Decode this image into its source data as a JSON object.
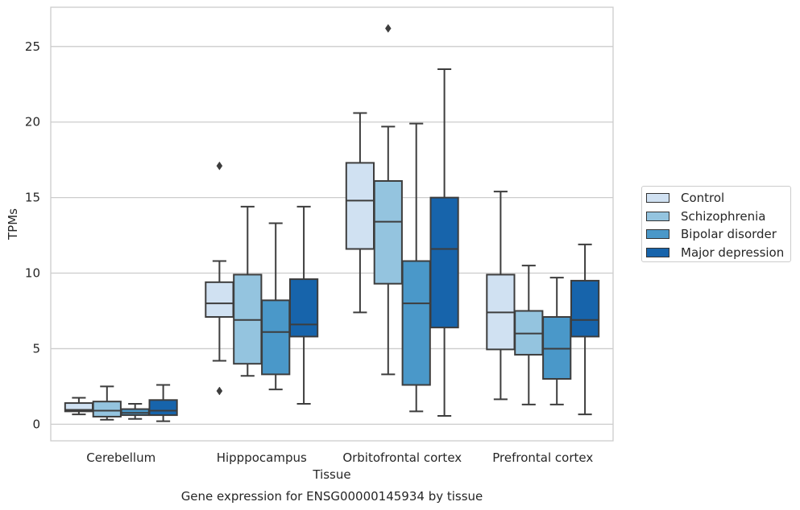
{
  "chart_data": {
    "type": "boxplot",
    "title": "Gene expression for ENSG00000145934 by tissue",
    "xlabel": "Tissue",
    "ylabel": "TPMs",
    "ylim": [
      -1.1,
      27.6
    ],
    "yticks": [
      0,
      5,
      10,
      15,
      20,
      25
    ],
    "grid": true,
    "legend_position": "right, outside plot",
    "categories": [
      "Cerebellum",
      "Hipppocampus",
      "Orbitofrontal cortex",
      "Prefrontal cortex"
    ],
    "series": [
      {
        "name": "Control",
        "color": "#d0e1f2",
        "boxes": [
          {
            "whisker_low": 0.65,
            "q1": 0.85,
            "median": 0.95,
            "q3": 1.4,
            "whisker_high": 1.75,
            "outliers": []
          },
          {
            "whisker_low": 4.2,
            "q1": 7.1,
            "median": 8.0,
            "q3": 9.4,
            "whisker_high": 10.8,
            "outliers": [
              17.1,
              2.2
            ]
          },
          {
            "whisker_low": 7.4,
            "q1": 11.6,
            "median": 14.8,
            "q3": 17.3,
            "whisker_high": 20.6,
            "outliers": []
          },
          {
            "whisker_low": 1.65,
            "q1": 4.95,
            "median": 7.4,
            "q3": 9.9,
            "whisker_high": 15.4,
            "outliers": []
          }
        ]
      },
      {
        "name": "Schizophrenia",
        "color": "#94c4df",
        "boxes": [
          {
            "whisker_low": 0.3,
            "q1": 0.5,
            "median": 0.9,
            "q3": 1.5,
            "whisker_high": 2.5,
            "outliers": []
          },
          {
            "whisker_low": 3.2,
            "q1": 4.0,
            "median": 6.9,
            "q3": 9.9,
            "whisker_high": 14.4,
            "outliers": []
          },
          {
            "whisker_low": 3.3,
            "q1": 9.3,
            "median": 13.4,
            "q3": 16.1,
            "whisker_high": 19.7,
            "outliers": [
              26.2
            ]
          },
          {
            "whisker_low": 1.3,
            "q1": 4.6,
            "median": 6.0,
            "q3": 7.5,
            "whisker_high": 10.5,
            "outliers": []
          }
        ]
      },
      {
        "name": "Bipolar disorder",
        "color": "#4a98c9",
        "boxes": [
          {
            "whisker_low": 0.35,
            "q1": 0.6,
            "median": 0.75,
            "q3": 1.0,
            "whisker_high": 1.35,
            "outliers": []
          },
          {
            "whisker_low": 2.3,
            "q1": 3.3,
            "median": 6.1,
            "q3": 8.2,
            "whisker_high": 13.3,
            "outliers": []
          },
          {
            "whisker_low": 0.85,
            "q1": 2.6,
            "median": 8.0,
            "q3": 10.8,
            "whisker_high": 19.9,
            "outliers": []
          },
          {
            "whisker_low": 1.3,
            "q1": 3.0,
            "median": 5.0,
            "q3": 7.1,
            "whisker_high": 9.7,
            "outliers": []
          }
        ]
      },
      {
        "name": "Major depression",
        "color": "#1764ab",
        "boxes": [
          {
            "whisker_low": 0.2,
            "q1": 0.6,
            "median": 0.9,
            "q3": 1.6,
            "whisker_high": 2.6,
            "outliers": []
          },
          {
            "whisker_low": 1.35,
            "q1": 5.8,
            "median": 6.6,
            "q3": 9.6,
            "whisker_high": 14.4,
            "outliers": []
          },
          {
            "whisker_low": 0.55,
            "q1": 6.4,
            "median": 11.6,
            "q3": 15.0,
            "whisker_high": 23.5,
            "outliers": []
          },
          {
            "whisker_low": 0.65,
            "q1": 5.8,
            "median": 6.9,
            "q3": 9.5,
            "whisker_high": 11.9,
            "outliers": []
          }
        ]
      }
    ]
  }
}
